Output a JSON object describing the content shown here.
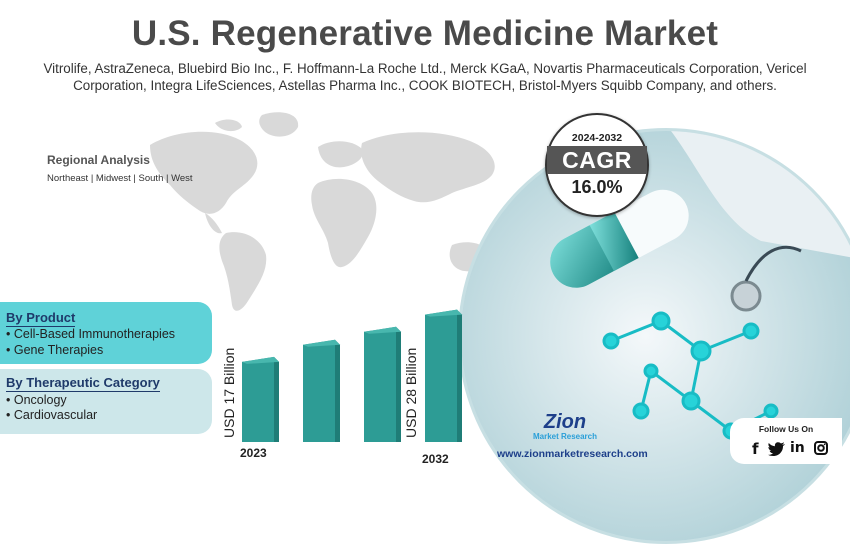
{
  "title": "U.S. Regenerative Medicine Market",
  "subtitle_line1": "Vitrolife, AstraZeneca, Bluebird Bio Inc., F. Hoffmann-La Roche Ltd., Merck KGaA, Novartis Pharmaceuticals Corporation, Vericel",
  "subtitle_line2": "Corporation, Integra LifeSciences, Astellas Pharma Inc., COOK BIOTECH, Bristol-Myers Squibb Company, and others.",
  "regional": {
    "title": "Regional Analysis",
    "regions": "Northeast  | Midwest | South | West"
  },
  "cagr": {
    "period": "2024-2032",
    "label": "CAGR",
    "value": "16.0%"
  },
  "segments": [
    {
      "title": "By Product",
      "items": [
        "• Cell-Based Immunotherapies",
        "• Gene Therapies"
      ]
    },
    {
      "title": "By Therapeutic Category",
      "items": [
        "• Oncology",
        "• Cardiovascular"
      ]
    }
  ],
  "chart_data": {
    "type": "bar",
    "categories": [
      "2023",
      "",
      "",
      "2032"
    ],
    "values": [
      17,
      21,
      24,
      28
    ],
    "value_labels": [
      "USD 17 Billion",
      "",
      "",
      "USD 28 Billion"
    ],
    "unit": "USD Billion",
    "colors": {
      "front": "#2d9c95",
      "top": "#48b7ae",
      "side": "#1f7d77"
    }
  },
  "brand": {
    "name": "Zion",
    "sub": "Market Research",
    "url": "www.zionmarketresearch.com"
  },
  "follow": {
    "title": "Follow Us On",
    "icons": [
      "facebook-icon",
      "twitter-icon",
      "linkedin-icon",
      "instagram-icon"
    ]
  },
  "colors": {
    "accent": "#5fd2d8",
    "panel_light": "#cde7ea",
    "navy": "#1f3a6a"
  }
}
